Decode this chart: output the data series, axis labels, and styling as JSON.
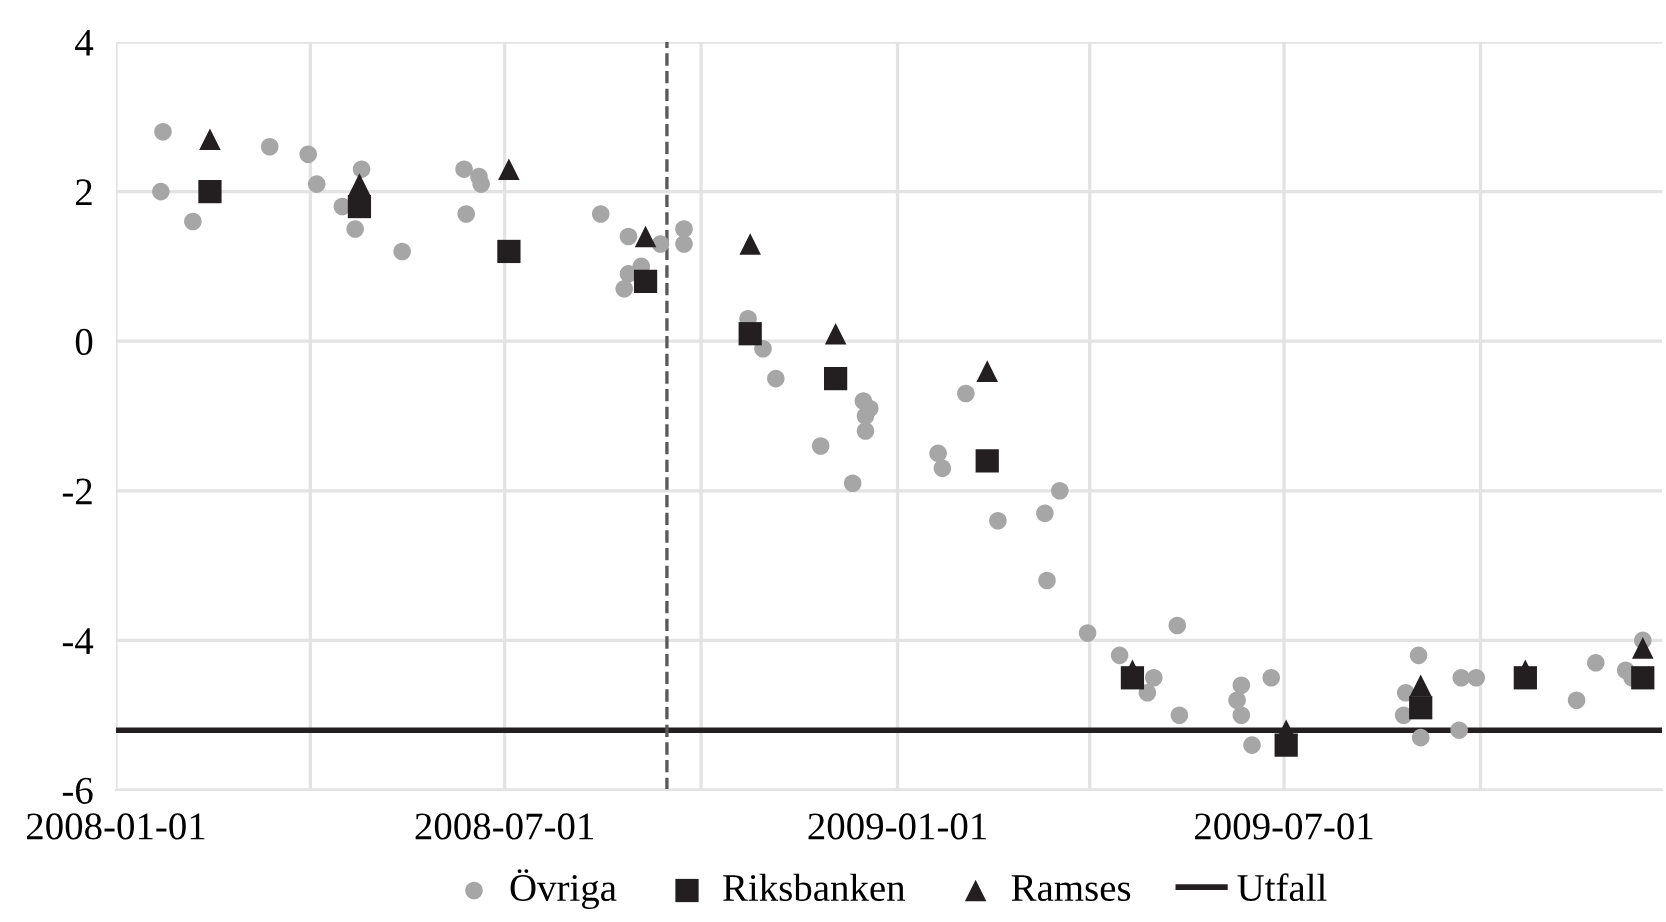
{
  "chart_data": {
    "type": "scatter",
    "xlim": [
      "2008-01-01",
      "2009-12-25"
    ],
    "xticks": [
      {
        "value": "2008-01-01",
        "label": "2008-01-01"
      },
      {
        "value": "2008-04-01",
        "label": null
      },
      {
        "value": "2008-07-01",
        "label": "2008-07-01"
      },
      {
        "value": "2008-10-01",
        "label": null
      },
      {
        "value": "2009-01-01",
        "label": "2009-01-01"
      },
      {
        "value": "2009-04-01",
        "label": null
      },
      {
        "value": "2009-07-01",
        "label": "2009-07-01"
      },
      {
        "value": "2009-10-01",
        "label": null
      }
    ],
    "ylim": [
      -6,
      4
    ],
    "yticks": [
      -6,
      -4,
      -2,
      0,
      2,
      4
    ],
    "grid": true,
    "legend": "bottom",
    "ref_lines": [
      {
        "axis": "x",
        "value": "2008-09-15",
        "label": null,
        "color": "#595959",
        "line_style": "dashed"
      }
    ],
    "series": [
      {
        "name": "Övriga",
        "marker": "circle",
        "color": "#a6a6a6",
        "x": [
          "2008-01-23",
          "2008-01-22",
          "2008-02-06",
          "2008-03-13",
          "2008-03-31",
          "2008-04-04",
          "2008-04-16",
          "2008-04-25",
          "2008-04-22",
          "2008-05-14",
          "2008-06-12",
          "2008-06-19",
          "2008-06-20",
          "2008-06-13",
          "2008-08-15",
          "2008-08-28",
          "2008-08-28",
          "2008-08-26",
          "2008-09-03",
          "2008-09-12",
          "2008-09-23",
          "2008-09-23",
          "2008-10-23",
          "2008-10-30",
          "2008-11-05",
          "2008-11-26",
          "2008-12-16",
          "2008-12-19",
          "2008-12-17",
          "2008-12-17",
          "2008-12-11",
          "2009-02-02",
          "2009-01-20",
          "2009-01-22",
          "2009-03-18",
          "2009-03-11",
          "2009-02-17",
          "2009-03-12",
          "2009-03-31",
          "2009-04-15",
          "2009-05-01",
          "2009-04-28",
          "2009-05-12",
          "2009-05-13",
          "2009-06-11",
          "2009-06-09",
          "2009-06-11",
          "2009-06-16",
          "2009-06-25",
          "2009-09-02",
          "2009-08-27",
          "2009-08-26",
          "2009-09-03",
          "2009-09-22",
          "2009-09-29",
          "2009-09-21",
          "2009-11-15",
          "2009-11-24",
          "2009-12-08",
          "2009-12-11",
          "2009-12-16"
        ],
        "values": [
          2.8,
          2.0,
          1.6,
          2.6,
          2.5,
          2.1,
          1.8,
          2.3,
          1.5,
          1.2,
          2.3,
          2.2,
          2.1,
          1.7,
          1.7,
          1.4,
          0.9,
          0.7,
          1.0,
          1.3,
          1.5,
          1.3,
          0.3,
          -0.1,
          -0.5,
          -1.4,
          -0.8,
          -0.9,
          -1.0,
          -1.2,
          -1.9,
          -0.7,
          -1.5,
          -1.7,
          -2.0,
          -2.3,
          -2.4,
          -3.2,
          -3.9,
          -4.2,
          -4.5,
          -4.7,
          -3.8,
          -5.0,
          -4.6,
          -4.8,
          -5.0,
          -5.4,
          -4.5,
          -4.2,
          -4.7,
          -5.0,
          -5.3,
          -4.5,
          -4.5,
          -5.2,
          -4.8,
          -4.3,
          -4.4,
          -4.5,
          -4.0
        ]
      },
      {
        "name": "Riksbanken",
        "marker": "square",
        "color": "#231f20",
        "x": [
          "2008-02-14",
          "2008-04-24",
          "2008-07-03",
          "2008-09-05",
          "2008-10-24",
          "2008-12-03",
          "2009-02-12",
          "2009-04-21",
          "2009-07-02",
          "2009-09-03",
          "2009-10-22",
          "2009-12-16"
        ],
        "values": [
          2.0,
          1.8,
          1.2,
          0.8,
          0.1,
          -0.5,
          -1.6,
          -4.5,
          -5.4,
          -4.9,
          -4.5,
          -4.5
        ]
      },
      {
        "name": "Ramses",
        "marker": "triangle",
        "color": "#231f20",
        "x": [
          "2008-02-14",
          "2008-04-24",
          "2008-07-03",
          "2008-09-05",
          "2008-10-24",
          "2008-12-03",
          "2009-02-12",
          "2009-04-21",
          "2009-07-02",
          "2009-09-03",
          "2009-10-22",
          "2009-12-16"
        ],
        "values": [
          2.7,
          2.1,
          2.3,
          1.4,
          1.3,
          0.1,
          -0.4,
          -4.4,
          -5.2,
          -4.6,
          -4.4,
          -4.1
        ]
      },
      {
        "name": "Utfall",
        "type": "line",
        "marker": "none",
        "line_style": "solid",
        "color": "#231f20",
        "x": [
          "2008-01-01",
          "2009-12-25"
        ],
        "values": [
          -5.2,
          -5.2
        ]
      }
    ]
  }
}
